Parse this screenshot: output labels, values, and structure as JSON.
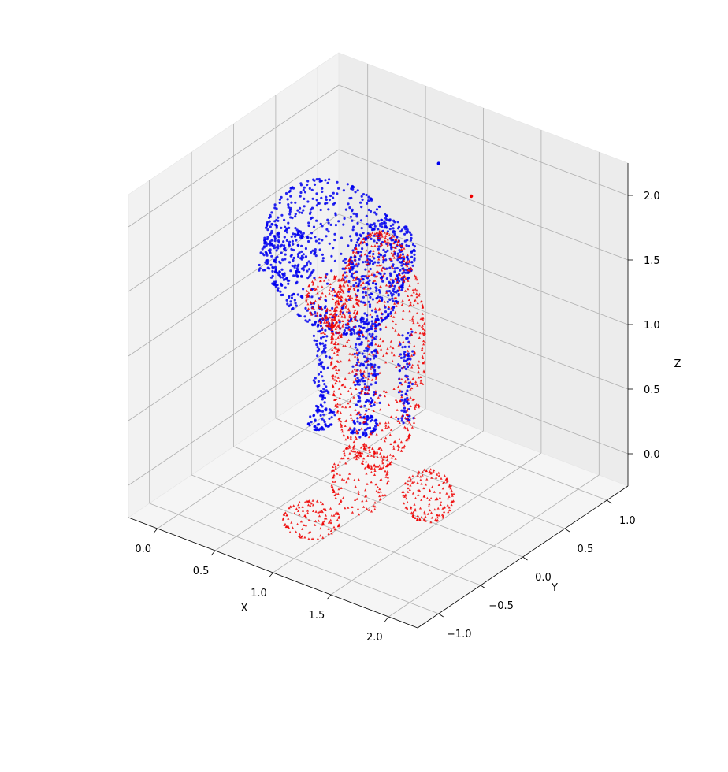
{
  "chart_data": {
    "type": "scatter",
    "dimensions": 3,
    "title": "",
    "xlabel": "X",
    "ylabel": "Y",
    "zlabel": "Z",
    "xlim": [
      -0.25,
      2.25
    ],
    "ylim": [
      -1.25,
      1.25
    ],
    "zlim": [
      -0.25,
      2.25
    ],
    "xticks": [
      "0.0",
      "0.5",
      "1.0",
      "1.5",
      "2.0"
    ],
    "yticks": [
      "−1.0",
      "−0.5",
      "0.0",
      "0.5",
      "1.0"
    ],
    "zticks": [
      "0.0",
      "0.5",
      "1.0",
      "1.5",
      "2.0"
    ],
    "grid": true,
    "legend": "none",
    "series": [
      {
        "color": "#0000ee",
        "marker": "circle",
        "point_count_approx": 1500,
        "shape_samples": [
          [
            0.02,
            0.1,
            1.35
          ],
          [
            0.08,
            0.05,
            1.4
          ],
          [
            0.15,
            0.0,
            1.45
          ],
          [
            0.2,
            0.1,
            1.3
          ],
          [
            0.25,
            -0.05,
            1.5
          ],
          [
            0.3,
            0.0,
            1.55
          ],
          [
            0.35,
            0.1,
            1.2
          ],
          [
            0.4,
            -0.1,
            1.6
          ],
          [
            0.45,
            0.0,
            1.7
          ],
          [
            0.5,
            0.05,
            1.75
          ],
          [
            0.55,
            -0.05,
            1.8
          ],
          [
            0.6,
            0.0,
            1.85
          ],
          [
            0.65,
            0.1,
            1.9
          ],
          [
            0.7,
            0.0,
            1.95
          ],
          [
            0.75,
            -0.05,
            2.0
          ],
          [
            0.8,
            0.0,
            2.05
          ],
          [
            0.85,
            0.05,
            2.1
          ],
          [
            0.9,
            0.0,
            2.15
          ],
          [
            0.95,
            0.1,
            2.1
          ],
          [
            1.0,
            0.0,
            2.0
          ],
          [
            1.02,
            0.05,
            1.8
          ],
          [
            1.04,
            -0.05,
            1.6
          ],
          [
            1.05,
            0.0,
            1.5
          ],
          [
            0.3,
            0.3,
            0.5
          ],
          [
            0.32,
            0.3,
            0.2
          ],
          [
            0.34,
            0.35,
            0.05
          ],
          [
            0.6,
            0.4,
            0.3
          ],
          [
            0.62,
            0.4,
            0.05
          ],
          [
            0.9,
            0.0,
            0.9
          ],
          [
            0.92,
            0.05,
            0.7
          ],
          [
            1.0,
            0.2,
            0.6
          ],
          [
            1.02,
            0.25,
            0.4
          ],
          [
            1.06,
            0.0,
            2.05
          ],
          [
            1.1,
            0.1,
            1.7
          ]
        ]
      },
      {
        "color": "#ee0000",
        "marker": "triangle",
        "point_count_approx": 1500,
        "shape_samples": [
          [
            1.1,
            -0.9,
            1.6
          ],
          [
            1.15,
            -0.85,
            1.7
          ],
          [
            1.2,
            -0.8,
            1.8
          ],
          [
            1.25,
            -0.75,
            1.9
          ],
          [
            1.3,
            -0.7,
            2.0
          ],
          [
            1.35,
            -0.6,
            2.05
          ],
          [
            1.4,
            -0.55,
            2.1
          ],
          [
            1.45,
            -0.5,
            2.1
          ],
          [
            1.5,
            -0.45,
            2.0
          ],
          [
            1.55,
            -0.4,
            1.9
          ],
          [
            1.6,
            -0.35,
            1.8
          ],
          [
            1.45,
            -0.6,
            1.5
          ],
          [
            1.4,
            -0.5,
            1.3
          ],
          [
            1.45,
            -0.5,
            1.1
          ],
          [
            1.5,
            -0.45,
            0.9
          ],
          [
            1.55,
            -0.4,
            0.7
          ],
          [
            1.6,
            -0.35,
            0.5
          ],
          [
            1.5,
            -0.5,
            0.6
          ],
          [
            1.4,
            -0.6,
            0.8
          ],
          [
            1.3,
            -0.7,
            0.3
          ],
          [
            1.2,
            -0.9,
            0.1
          ],
          [
            1.1,
            -1.0,
            0.05
          ],
          [
            1.6,
            -0.3,
            0.1
          ],
          [
            1.65,
            -0.25,
            0.05
          ],
          [
            1.7,
            -0.2,
            0.15
          ],
          [
            1.55,
            -0.45,
            0.2
          ],
          [
            1.35,
            -0.6,
            1.6
          ],
          [
            1.65,
            -0.3,
            1.4
          ],
          [
            1.25,
            -0.75,
            1.2
          ],
          [
            1.5,
            0.2,
            2.1
          ]
        ]
      }
    ]
  }
}
